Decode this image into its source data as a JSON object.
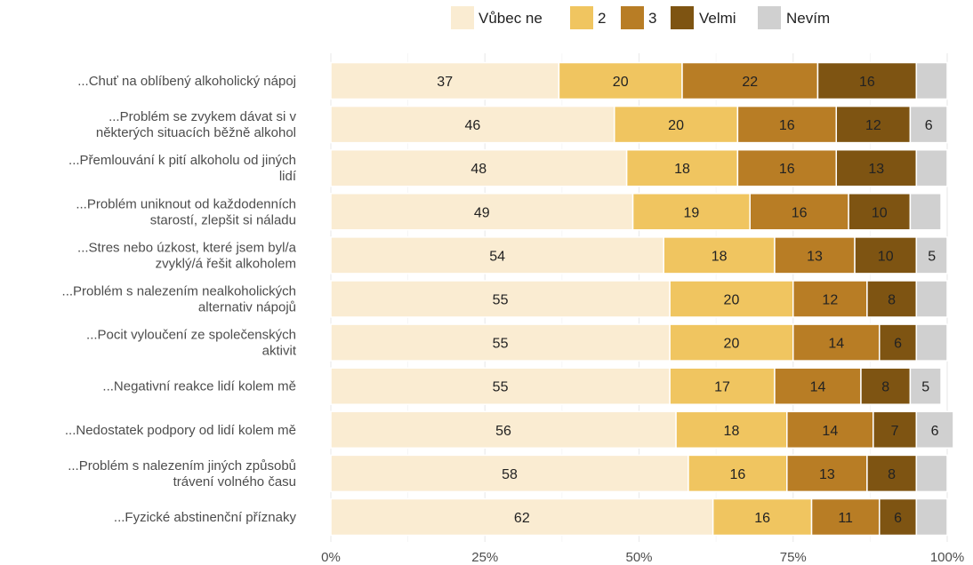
{
  "chart_data": {
    "type": "bar",
    "orientation": "horizontal",
    "stacked": true,
    "xlim": [
      0,
      100
    ],
    "x_ticks": [
      "0%",
      "25%",
      "50%",
      "75%",
      "100%"
    ],
    "grid": true,
    "legend_position": "top",
    "categories": [
      [
        "...Chuť na oblíbený alkoholický nápoj"
      ],
      [
        "...Problém se zvykem dávat si v",
        "některých situacích běžně alkohol"
      ],
      [
        "...Přemlouvání k pití alkoholu od jiných",
        "lidí"
      ],
      [
        "...Problém uniknout od každodenních",
        "starostí, zlepšit si náladu"
      ],
      [
        "...Stres nebo úzkost, které jsem byl/a",
        "zvyklý/á řešit alkoholem"
      ],
      [
        "...Problém s nalezením nealkoholických",
        "alternativ nápojů"
      ],
      [
        "...Pocit vyloučení ze společenských",
        "aktivit"
      ],
      [
        "...Negativní reakce lidí kolem mě"
      ],
      [
        "...Nedostatek podpory od lidí kolem mě"
      ],
      [
        "...Problém s nalezením jiných způsobů",
        "trávení volného času"
      ],
      [
        "...Fyzické abstinenční příznaky"
      ]
    ],
    "series": [
      {
        "name": "Vůbec ne",
        "color": "#faecd2",
        "values": [
          37,
          46,
          48,
          49,
          54,
          55,
          55,
          55,
          56,
          58,
          62
        ]
      },
      {
        "name": "2",
        "color": "#f0c560",
        "values": [
          20,
          20,
          18,
          19,
          18,
          20,
          20,
          17,
          18,
          16,
          16
        ]
      },
      {
        "name": "3",
        "color": "#b87d25",
        "values": [
          22,
          16,
          16,
          16,
          13,
          12,
          14,
          14,
          14,
          13,
          11
        ]
      },
      {
        "name": "Velmi",
        "color": "#7e5412",
        "values": [
          16,
          12,
          13,
          10,
          10,
          8,
          6,
          8,
          7,
          8,
          6
        ]
      },
      {
        "name": "Nevím",
        "color": "#d0d0d0",
        "values": [
          5,
          6,
          5,
          5,
          5,
          5,
          5,
          5,
          6,
          5,
          5
        ]
      }
    ],
    "shown_labels": [
      [
        true,
        true,
        true,
        true,
        false
      ],
      [
        true,
        true,
        true,
        true,
        true
      ],
      [
        true,
        true,
        true,
        true,
        false
      ],
      [
        true,
        true,
        true,
        true,
        false
      ],
      [
        true,
        true,
        true,
        true,
        true
      ],
      [
        true,
        true,
        true,
        true,
        false
      ],
      [
        true,
        true,
        true,
        true,
        false
      ],
      [
        true,
        true,
        true,
        true,
        true
      ],
      [
        true,
        true,
        true,
        true,
        true
      ],
      [
        true,
        true,
        true,
        true,
        false
      ],
      [
        true,
        true,
        true,
        true,
        false
      ]
    ]
  }
}
